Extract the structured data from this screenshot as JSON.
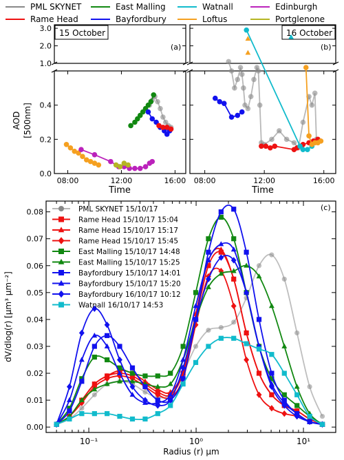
{
  "colors": {
    "pml": "#888888",
    "rame": "#ee1111",
    "east": "#118811",
    "bay": "#1111ee",
    "wat": "#11bbcc",
    "loft": "#f5a020",
    "edin": "#bb22bb",
    "port": "#b5b522"
  },
  "top_legend": [
    {
      "key": "pml",
      "label": "PML SKYNET"
    },
    {
      "key": "east",
      "label": "East Malling"
    },
    {
      "key": "wat",
      "label": "Watnall"
    },
    {
      "key": "edin",
      "label": "Edinburgh"
    },
    {
      "key": "rame",
      "label": "Rame Head"
    },
    {
      "key": "bay",
      "label": "Bayfordbury"
    },
    {
      "key": "loft",
      "label": "Loftus"
    },
    {
      "key": "port",
      "label": "Portglenone"
    }
  ],
  "chart_data": [
    {
      "type": "line",
      "panel": "(a)",
      "date_label": "15 October",
      "xlabel": "Time",
      "ylabel": "AOD\n[500nm]",
      "xticks": [
        "08:00",
        "12:00",
        "16:00"
      ],
      "xlim": [
        7.0,
        16.8
      ],
      "ylim_upper": [
        1.0,
        3.2
      ],
      "ylim_lower": [
        0.0,
        0.6
      ],
      "yticks_upper": [
        "1.0",
        "2.0",
        "3.0"
      ],
      "yticks_lower": [
        "0.0",
        "0.2",
        "0.4"
      ],
      "series": [
        {
          "key": "pml",
          "x": [
            14.1,
            14.3,
            14.5,
            14.7,
            14.9,
            15.1,
            15.3,
            15.5,
            15.7
          ],
          "y": [
            0.4,
            0.43,
            0.45,
            0.42,
            0.38,
            0.33,
            0.3,
            0.28,
            0.27
          ]
        },
        {
          "key": "east",
          "x": [
            12.7,
            13.0,
            13.2,
            13.4,
            13.6,
            13.8,
            14.0,
            14.2,
            14.4
          ],
          "y": [
            0.28,
            0.3,
            0.32,
            0.34,
            0.36,
            0.38,
            0.4,
            0.42,
            0.46
          ]
        },
        {
          "key": "bay",
          "x": [
            14.0,
            14.3,
            14.6,
            14.9,
            15.2,
            15.4,
            15.6
          ],
          "y": [
            0.36,
            0.32,
            0.3,
            0.27,
            0.25,
            0.23,
            0.25
          ]
        },
        {
          "key": "rame",
          "x": [
            14.8,
            15.1,
            15.4,
            15.7
          ],
          "y": [
            0.28,
            0.27,
            0.27,
            0.26
          ]
        },
        {
          "key": "loft",
          "x": [
            7.9,
            8.2,
            8.5,
            8.8,
            9.1,
            9.4,
            9.7,
            10.0,
            10.3
          ],
          "y": [
            0.17,
            0.15,
            0.13,
            0.12,
            0.1,
            0.08,
            0.07,
            0.06,
            0.05
          ]
        },
        {
          "key": "edin",
          "x": [
            9.0,
            10.0,
            11.2,
            11.8,
            12.2,
            12.6,
            13.0,
            13.4,
            13.8,
            14.1,
            14.3
          ],
          "y": [
            0.14,
            0.11,
            0.07,
            0.04,
            0.04,
            0.03,
            0.03,
            0.03,
            0.04,
            0.06,
            0.07
          ]
        },
        {
          "key": "port",
          "x": [
            11.6,
            11.9,
            12.2,
            12.5
          ],
          "y": [
            0.05,
            0.04,
            0.06,
            0.05
          ]
        }
      ]
    },
    {
      "type": "line",
      "panel": "(b)",
      "date_label": "16 October",
      "xlabel": "Time",
      "xticks": [
        "08:00",
        "12:00",
        "16:00"
      ],
      "xlim": [
        7.0,
        16.8
      ],
      "series": [
        {
          "key": "pml",
          "x": [
            9.6,
            9.8,
            10.0,
            10.2,
            10.4,
            10.5,
            10.6,
            10.7,
            10.9,
            11.1,
            11.3,
            11.5,
            11.6,
            11.7,
            11.8,
            12.0,
            12.5,
            13.0,
            13.5,
            14.0,
            14.3,
            14.6,
            15.0,
            15.2,
            15.4,
            15.5
          ],
          "y": [
            1.1,
            0.6,
            0.5,
            0.55,
            0.62,
            0.58,
            0.5,
            0.4,
            0.38,
            0.45,
            0.55,
            0.62,
            0.6,
            0.4,
            0.18,
            0.17,
            0.2,
            0.25,
            0.2,
            0.18,
            0.15,
            0.3,
            0.45,
            0.4,
            0.47,
            0.2
          ]
        },
        {
          "key": "bay",
          "x": [
            8.7,
            9.0,
            9.3,
            9.8,
            10.2,
            10.5
          ],
          "y": [
            0.44,
            0.42,
            0.41,
            0.33,
            0.34,
            0.36
          ]
        },
        {
          "key": "rame",
          "x": [
            11.8,
            12.1,
            12.4,
            12.7,
            14.0,
            14.2,
            14.4,
            14.6,
            15.0,
            15.3,
            15.6
          ],
          "y": [
            0.16,
            0.16,
            0.15,
            0.16,
            0.14,
            0.15,
            0.16,
            0.17,
            0.18,
            0.19,
            0.2
          ]
        },
        {
          "key": "wat",
          "x": [
            10.8,
            14.4,
            14.6,
            14.9,
            15.2
          ],
          "y": [
            2.9,
            0.16,
            0.14,
            0.14,
            0.16
          ]
        },
        {
          "key": "loft",
          "x": [
            14.8,
            15.0,
            15.2,
            15.4,
            15.6,
            15.8
          ],
          "y": [
            0.62,
            0.22,
            0.17,
            0.18,
            0.18,
            0.19
          ]
        }
      ],
      "markers": [
        {
          "key": "loft",
          "shape": "triangle",
          "x": 10.9,
          "y": 2.4
        },
        {
          "key": "loft",
          "shape": "triangle",
          "x": 10.9,
          "y": 1.6
        },
        {
          "key": "wat",
          "shape": "triangle",
          "x": 13.8,
          "y": 2.5
        }
      ]
    },
    {
      "type": "line",
      "panel": "(c)",
      "xlabel": "Radius (r) μm",
      "ylabel": "dV/dlog(r) [μm³ μm⁻²]",
      "x_scale": "log",
      "xlim": [
        0.04,
        20
      ],
      "ylim": [
        -0.002,
        0.084
      ],
      "xticks": [
        "10⁻¹",
        "10⁰",
        "10¹"
      ],
      "yticks": [
        "0.00",
        "0.01",
        "0.02",
        "0.03",
        "0.04",
        "0.05",
        "0.06",
        "0.07",
        "0.08"
      ],
      "x": [
        0.05,
        0.066,
        0.086,
        0.113,
        0.148,
        0.194,
        0.255,
        0.335,
        0.439,
        0.576,
        0.756,
        0.992,
        1.302,
        1.708,
        2.241,
        2.94,
        3.857,
        5.06,
        6.638,
        8.709,
        11.43,
        15.0
      ],
      "series": [
        {
          "name": "PML SKYNET 15/10/17",
          "key": "pml",
          "marker": "circle",
          "y": [
            0.001,
            0.003,
            0.007,
            0.012,
            0.016,
            0.017,
            0.016,
            0.013,
            0.011,
            0.012,
            0.02,
            0.03,
            0.036,
            0.037,
            0.039,
            0.048,
            0.06,
            0.064,
            0.055,
            0.035,
            0.015,
            0.004
          ]
        },
        {
          "name": "Rame Head 15/10/17 15:04",
          "key": "rame",
          "marker": "square",
          "y": [
            0.001,
            0.004,
            0.01,
            0.016,
            0.019,
            0.02,
            0.019,
            0.016,
            0.013,
            0.012,
            0.02,
            0.04,
            0.06,
            0.065,
            0.055,
            0.035,
            0.02,
            0.012,
            0.008,
            0.006,
            0.003,
            0.001
          ]
        },
        {
          "name": "Rame Head 15/10/17 15:17",
          "key": "rame",
          "marker": "triangle",
          "y": [
            0.001,
            0.004,
            0.01,
            0.016,
            0.019,
            0.021,
            0.02,
            0.017,
            0.014,
            0.013,
            0.021,
            0.042,
            0.062,
            0.066,
            0.055,
            0.035,
            0.02,
            0.012,
            0.008,
            0.006,
            0.003,
            0.001
          ]
        },
        {
          "name": "Rame Head 15/10/17 15:45",
          "key": "rame",
          "marker": "diamond",
          "y": [
            0.001,
            0.004,
            0.009,
            0.015,
            0.018,
            0.019,
            0.018,
            0.015,
            0.012,
            0.011,
            0.018,
            0.038,
            0.056,
            0.058,
            0.045,
            0.025,
            0.012,
            0.007,
            0.005,
            0.004,
            0.002,
            0.001
          ]
        },
        {
          "name": "East Malling 15/10/17 14:48",
          "key": "east",
          "marker": "square",
          "y": [
            0.001,
            0.007,
            0.018,
            0.026,
            0.025,
            0.022,
            0.02,
            0.019,
            0.019,
            0.02,
            0.03,
            0.05,
            0.07,
            0.078,
            0.07,
            0.05,
            0.03,
            0.018,
            0.012,
            0.008,
            0.004,
            0.001
          ]
        },
        {
          "name": "East Malling 15/10/17 15:25",
          "key": "east",
          "marker": "triangle",
          "y": [
            0.001,
            0.004,
            0.01,
            0.014,
            0.016,
            0.017,
            0.017,
            0.016,
            0.015,
            0.016,
            0.025,
            0.04,
            0.052,
            0.057,
            0.058,
            0.06,
            0.056,
            0.045,
            0.03,
            0.015,
            0.005,
            0.001
          ]
        },
        {
          "name": "Bayfordbury 15/10/17 14:01",
          "key": "bay",
          "marker": "square",
          "y": [
            0.001,
            0.006,
            0.017,
            0.03,
            0.034,
            0.03,
            0.022,
            0.015,
            0.01,
            0.01,
            0.018,
            0.04,
            0.065,
            0.08,
            0.081,
            0.065,
            0.04,
            0.02,
            0.01,
            0.005,
            0.002,
            0.001
          ]
        },
        {
          "name": "Bayfordbury 15/10/17 15:20",
          "key": "bay",
          "marker": "triangle",
          "y": [
            0.001,
            0.01,
            0.025,
            0.034,
            0.03,
            0.02,
            0.012,
            0.009,
            0.009,
            0.012,
            0.025,
            0.045,
            0.062,
            0.068,
            0.066,
            0.05,
            0.03,
            0.016,
            0.009,
            0.005,
            0.002,
            0.001
          ]
        },
        {
          "name": "Bayfordbury 16/10/17 10:12",
          "key": "bay",
          "marker": "diamond",
          "y": [
            0.001,
            0.015,
            0.035,
            0.044,
            0.038,
            0.025,
            0.015,
            0.01,
            0.008,
            0.01,
            0.022,
            0.04,
            0.055,
            0.063,
            0.062,
            0.05,
            0.03,
            0.015,
            0.008,
            0.004,
            0.002,
            0.001
          ]
        },
        {
          "name": "Watnall 16/10/17 14:53",
          "key": "wat",
          "marker": "square",
          "y": [
            0.001,
            0.003,
            0.005,
            0.005,
            0.005,
            0.004,
            0.003,
            0.003,
            0.005,
            0.008,
            0.016,
            0.024,
            0.03,
            0.033,
            0.033,
            0.031,
            0.029,
            0.027,
            0.02,
            0.012,
            0.004,
            0.001
          ]
        }
      ]
    }
  ]
}
